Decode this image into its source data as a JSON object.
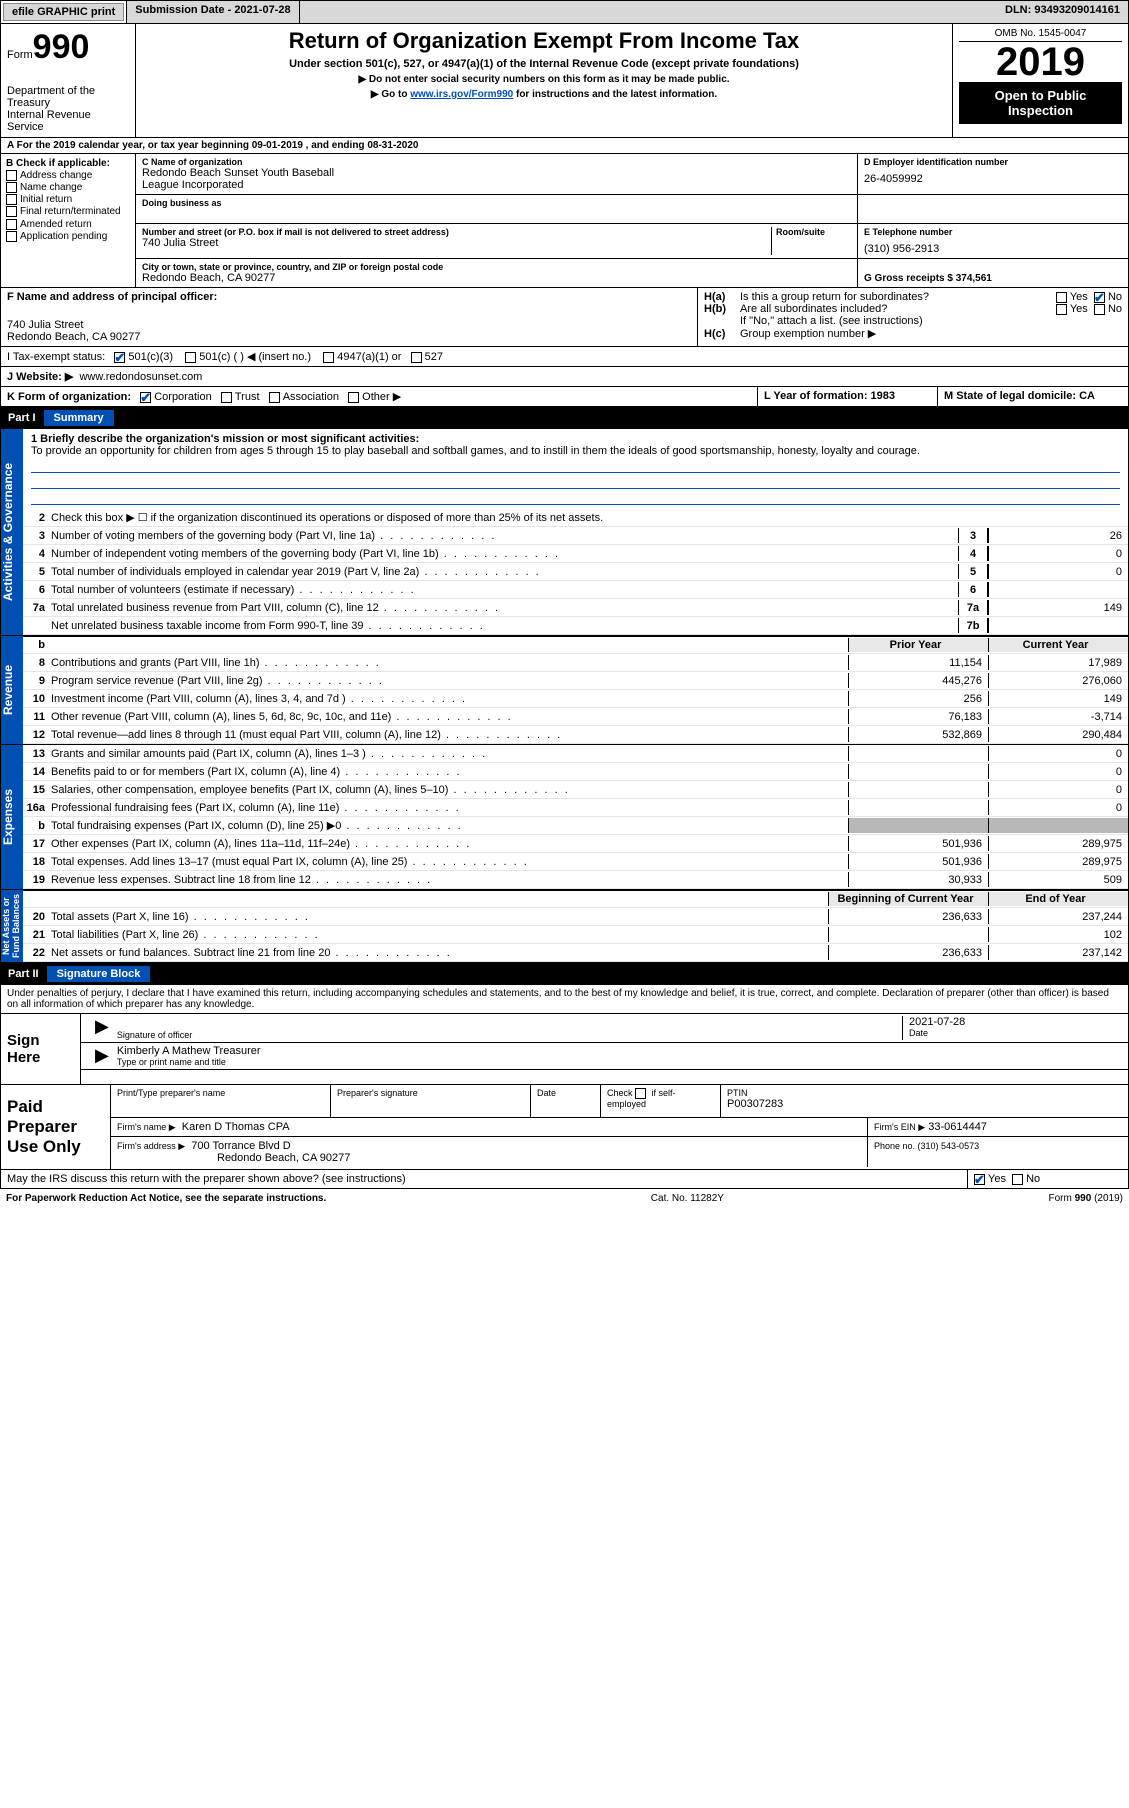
{
  "topbar": {
    "efile": "efile GRAPHIC print",
    "submission_label": "Submission Date - 2021-07-28",
    "dln": "DLN: 93493209014161"
  },
  "header": {
    "form_word": "Form",
    "form_num": "990",
    "dept": "Department of the Treasury\nInternal Revenue Service",
    "title": "Return of Organization Exempt From Income Tax",
    "subtitle": "Under section 501(c), 527, or 4947(a)(1) of the Internal Revenue Code (except private foundations)",
    "note1": "▶ Do not enter social security numbers on this form as it may be made public.",
    "note2_pre": "▶ Go to ",
    "note2_link": "www.irs.gov/Form990",
    "note2_post": " for instructions and the latest information.",
    "omb": "OMB No. 1545-0047",
    "year": "2019",
    "opi": "Open to Public\nInspection"
  },
  "line_a": "A  For the 2019 calendar year, or tax year beginning 09-01-2019    , and ending 08-31-2020",
  "col_b": {
    "hdr": "B Check if applicable:",
    "items": [
      "Address change",
      "Name change",
      "Initial return",
      "Final return/terminated",
      "Amended return",
      "Application pending"
    ]
  },
  "col_c": {
    "name_lbl": "C Name of organization",
    "name": "Redondo Beach Sunset Youth Baseball\nLeague Incorporated",
    "dba_lbl": "Doing business as",
    "addr_lbl": "Number and street (or P.O. box if mail is not delivered to street address)",
    "room_lbl": "Room/suite",
    "addr": "740 Julia Street",
    "city_lbl": "City or town, state or province, country, and ZIP or foreign postal code",
    "city": "Redondo Beach, CA  90277"
  },
  "col_d": {
    "ein_lbl": "D Employer identification number",
    "ein": "26-4059992",
    "tel_lbl": "E Telephone number",
    "tel": "(310) 956-2913",
    "gross_lbl": "G Gross receipts $ 374,561"
  },
  "line_f": {
    "lbl": "F  Name and address of principal officer:",
    "addr1": "740 Julia Street",
    "addr2": "Redondo Beach, CA  90277"
  },
  "line_h": {
    "ha": "H(a)  Is this a group return for subordinates?",
    "hb": "H(b)  Are all subordinates included?",
    "hb_note": "If \"No,\" attach a list. (see instructions)",
    "hc": "H(c)  Group exemption number ▶",
    "yes": "Yes",
    "no": "No"
  },
  "line_i": {
    "lbl": "I     Tax-exempt status:",
    "o1": "501(c)(3)",
    "o2": "501(c) (  ) ◀ (insert no.)",
    "o3": "4947(a)(1) or",
    "o4": "527"
  },
  "line_j": {
    "lbl": "J    Website: ▶",
    "val": "www.redondosunset.com"
  },
  "line_k": {
    "lbl": "K Form of organization:",
    "o1": "Corporation",
    "o2": "Trust",
    "o3": "Association",
    "o4": "Other ▶"
  },
  "line_l": {
    "lbl": "L Year of formation: 1983"
  },
  "line_m": {
    "lbl": "M State of legal domicile: CA"
  },
  "part1": {
    "num": "Part I",
    "title": "Summary"
  },
  "mission": {
    "lbl": "1   Briefly describe the organization's mission or most significant activities:",
    "txt": "To provide an opportunity for children from ages 5 through 15 to play baseball and softball games, and to instill in them the ideals of good sportsmanship, honesty, loyalty and courage."
  },
  "gov_lines": [
    {
      "n": "2",
      "d": "Check this box ▶ ☐  if the organization discontinued its operations or disposed of more than 25% of its net assets."
    },
    {
      "n": "3",
      "d": "Number of voting members of the governing body (Part VI, line 1a)",
      "box": "3",
      "v": "26"
    },
    {
      "n": "4",
      "d": "Number of independent voting members of the governing body (Part VI, line 1b)",
      "box": "4",
      "v": "0"
    },
    {
      "n": "5",
      "d": "Total number of individuals employed in calendar year 2019 (Part V, line 2a)",
      "box": "5",
      "v": "0"
    },
    {
      "n": "6",
      "d": "Total number of volunteers (estimate if necessary)",
      "box": "6",
      "v": ""
    },
    {
      "n": "7a",
      "d": "Total unrelated business revenue from Part VIII, column (C), line 12",
      "box": "7a",
      "v": "149"
    },
    {
      "n": "",
      "d": "Net unrelated business taxable income from Form 990-T, line 39",
      "box": "7b",
      "v": ""
    }
  ],
  "rev_hdr": {
    "b": "b",
    "py": "Prior Year",
    "cy": "Current Year"
  },
  "rev_lines": [
    {
      "n": "8",
      "d": "Contributions and grants (Part VIII, line 1h)",
      "py": "11,154",
      "cy": "17,989"
    },
    {
      "n": "9",
      "d": "Program service revenue (Part VIII, line 2g)",
      "py": "445,276",
      "cy": "276,060"
    },
    {
      "n": "10",
      "d": "Investment income (Part VIII, column (A), lines 3, 4, and 7d )",
      "py": "256",
      "cy": "149"
    },
    {
      "n": "11",
      "d": "Other revenue (Part VIII, column (A), lines 5, 6d, 8c, 9c, 10c, and 11e)",
      "py": "76,183",
      "cy": "-3,714"
    },
    {
      "n": "12",
      "d": "Total revenue—add lines 8 through 11 (must equal Part VIII, column (A), line 12)",
      "py": "532,869",
      "cy": "290,484"
    }
  ],
  "exp_lines": [
    {
      "n": "13",
      "d": "Grants and similar amounts paid (Part IX, column (A), lines 1–3 )",
      "py": "",
      "cy": "0"
    },
    {
      "n": "14",
      "d": "Benefits paid to or for members (Part IX, column (A), line 4)",
      "py": "",
      "cy": "0"
    },
    {
      "n": "15",
      "d": "Salaries, other compensation, employee benefits (Part IX, column (A), lines 5–10)",
      "py": "",
      "cy": "0"
    },
    {
      "n": "16a",
      "d": "Professional fundraising fees (Part IX, column (A), line 11e)",
      "py": "",
      "cy": "0"
    },
    {
      "n": "b",
      "d": "Total fundraising expenses (Part IX, column (D), line 25) ▶0",
      "py": "grey",
      "cy": "grey"
    },
    {
      "n": "17",
      "d": "Other expenses (Part IX, column (A), lines 11a–11d, 11f–24e)",
      "py": "501,936",
      "cy": "289,975"
    },
    {
      "n": "18",
      "d": "Total expenses. Add lines 13–17 (must equal Part IX, column (A), line 25)",
      "py": "501,936",
      "cy": "289,975"
    },
    {
      "n": "19",
      "d": "Revenue less expenses. Subtract line 18 from line 12",
      "py": "30,933",
      "cy": "509"
    }
  ],
  "net_hdr": {
    "py": "Beginning of Current Year",
    "cy": "End of Year"
  },
  "net_lines": [
    {
      "n": "20",
      "d": "Total assets (Part X, line 16)",
      "py": "236,633",
      "cy": "237,244"
    },
    {
      "n": "21",
      "d": "Total liabilities (Part X, line 26)",
      "py": "",
      "cy": "102"
    },
    {
      "n": "22",
      "d": "Net assets or fund balances. Subtract line 21 from line 20",
      "py": "236,633",
      "cy": "237,142"
    }
  ],
  "vtabs": {
    "gov": "Activities & Governance",
    "rev": "Revenue",
    "exp": "Expenses",
    "net": "Net Assets or\nFund Balances"
  },
  "part2": {
    "num": "Part II",
    "title": "Signature Block"
  },
  "jurat": "Under penalties of perjury, I declare that I have examined this return, including accompanying schedules and statements, and to the best of my knowledge and belief, it is true, correct, and complete. Declaration of preparer (other than officer) is based on all information of which preparer has any knowledge.",
  "sign": {
    "here": "Sign\nHere",
    "sig_lbl": "Signature of officer",
    "date_lbl": "Date",
    "date": "2021-07-28",
    "name": "Kimberly A Mathew  Treasurer",
    "name_lbl": "Type or print name and title"
  },
  "paid": {
    "lbl": "Paid\nPreparer\nUse Only",
    "h1": "Print/Type preparer's name",
    "h2": "Preparer's signature",
    "h3": "Date",
    "h4_pre": "Check",
    "h4_post": "if self-employed",
    "ptin_lbl": "PTIN",
    "ptin": "P00307283",
    "firm_lbl": "Firm's name    ▶",
    "firm": "Karen D Thomas CPA",
    "ein_lbl": "Firm's EIN ▶",
    "ein": "33-0614447",
    "addr_lbl": "Firm's address ▶",
    "addr1": "700 Torrance Blvd D",
    "addr2": "Redondo Beach, CA  90277",
    "phone_lbl": "Phone no. (310) 543-0573"
  },
  "discuss": "May the IRS discuss this return with the preparer shown above? (see instructions)",
  "footer": {
    "pra": "For Paperwork Reduction Act Notice, see the separate instructions.",
    "cat": "Cat. No. 11282Y",
    "form": "Form 990 (2019)"
  }
}
